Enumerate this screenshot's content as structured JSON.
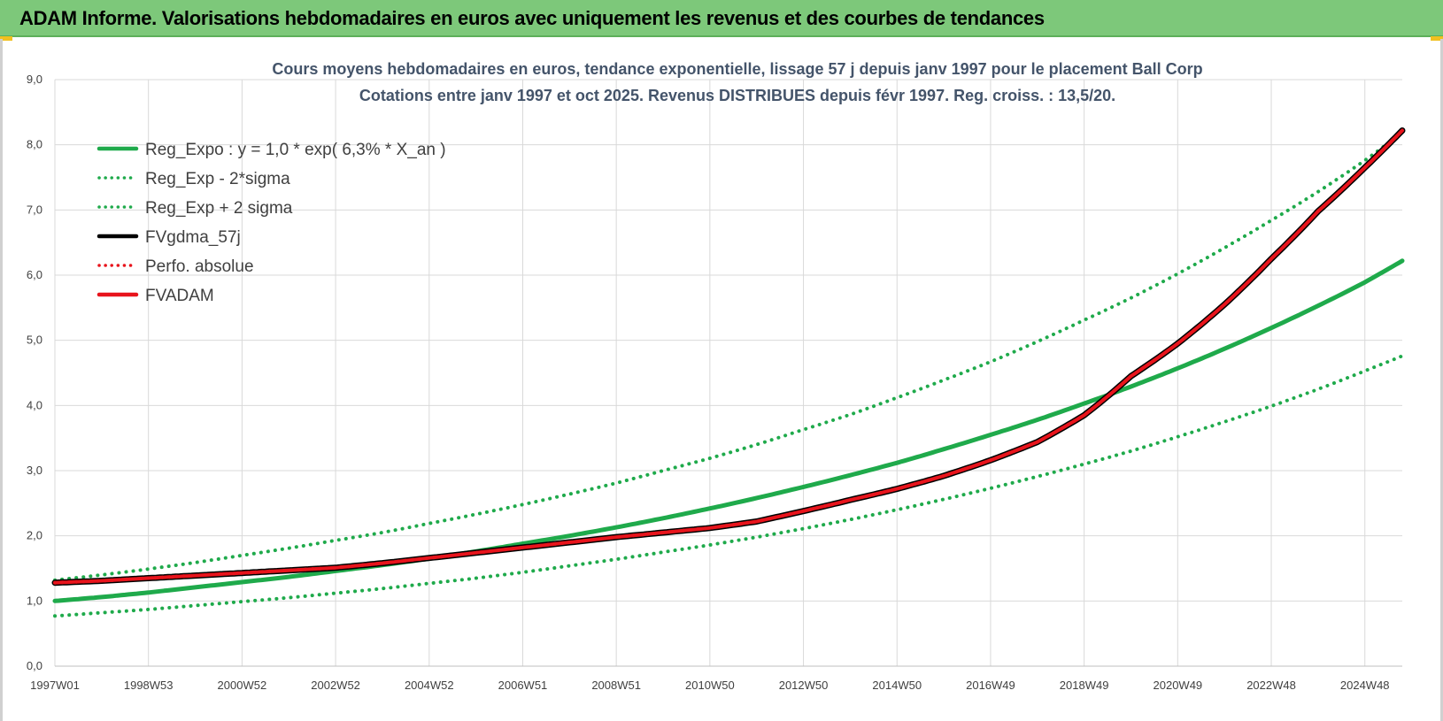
{
  "banner": {
    "title": "ADAM Informe. Valorisations hebdomadaires en euros avec uniquement les revenus et des courbes de tendances"
  },
  "colors": {
    "banner_bg": "#7dc87a",
    "regression": "#1faa4b",
    "fvadam": "#e8141c",
    "fvgdma": "#000000",
    "grid": "#d9d9d9"
  },
  "chart_data": {
    "type": "line",
    "title": [
      "Cours moyens hebdomadaires en euros, tendance exponentielle, lissage 57 j depuis janv 1997 pour le placement Ball Corp",
      "Cotations entre janv 1997 et oct 2025. Revenus DISTRIBUES depuis févr 1997. Reg. croiss. : 13,5/20."
    ],
    "xlabel": "",
    "ylabel": "",
    "x_range": [
      "1997W01",
      "2025W43"
    ],
    "ylim": [
      0,
      9
    ],
    "y_ticks": [
      "0,0",
      "1,0",
      "2,0",
      "3,0",
      "4,0",
      "5,0",
      "6,0",
      "7,0",
      "8,0",
      "9,0"
    ],
    "x_ticks": [
      "1997W01",
      "1998W53",
      "2000W52",
      "2002W52",
      "2004W52",
      "2006W51",
      "2008W51",
      "2010W50",
      "2012W50",
      "2014W50",
      "2016W49",
      "2018W49",
      "2020W49",
      "2022W48",
      "2024W48"
    ],
    "grid": true,
    "legend_position": "top-left",
    "legend": [
      {
        "label": "Reg_Expo : y = 1,0 * exp( 6,3% *  X_an )",
        "color": "#1faa4b",
        "style": "solid"
      },
      {
        "label": "Reg_Exp - 2*sigma",
        "color": "#1faa4b",
        "style": "dotted"
      },
      {
        "label": "Reg_Exp + 2 sigma",
        "color": "#1faa4b",
        "style": "dotted"
      },
      {
        "label": "FVgdma_57j",
        "color": "#000000",
        "style": "solid"
      },
      {
        "label": "Perfo. absolue",
        "color": "#e8141c",
        "style": "dotted"
      },
      {
        "label": "FVADAM",
        "color": "#e8141c",
        "style": "solid"
      }
    ],
    "x_years": [
      1997,
      1998,
      1999,
      2000,
      2001,
      2002,
      2003,
      2004,
      2005,
      2006,
      2007,
      2008,
      2009,
      2010,
      2011,
      2012,
      2013,
      2014,
      2015,
      2016,
      2017,
      2018,
      2019,
      2020,
      2021,
      2022,
      2023,
      2024,
      2025,
      2025.8
    ],
    "series": [
      {
        "name": "Reg_Expo : y = 1,0 * exp( 6,3% *  X_an )",
        "style": "solid",
        "color": "#1faa4b",
        "values": [
          1.0,
          1.06,
          1.13,
          1.21,
          1.29,
          1.37,
          1.46,
          1.55,
          1.65,
          1.76,
          1.88,
          2.0,
          2.13,
          2.27,
          2.42,
          2.58,
          2.75,
          2.93,
          3.12,
          3.33,
          3.55,
          3.78,
          4.03,
          4.29,
          4.57,
          4.87,
          5.19,
          5.53,
          5.89,
          6.22
        ]
      },
      {
        "name": "Reg_Exp - 2*sigma",
        "style": "dotted",
        "color": "#1faa4b",
        "values": [
          0.77,
          0.82,
          0.87,
          0.93,
          0.99,
          1.05,
          1.12,
          1.19,
          1.27,
          1.35,
          1.44,
          1.54,
          1.64,
          1.75,
          1.86,
          1.98,
          2.11,
          2.25,
          2.4,
          2.56,
          2.73,
          2.91,
          3.1,
          3.3,
          3.52,
          3.75,
          3.99,
          4.25,
          4.53,
          4.76
        ]
      },
      {
        "name": "Reg_Exp + 2 sigma",
        "style": "dotted",
        "color": "#1faa4b",
        "values": [
          1.32,
          1.4,
          1.49,
          1.59,
          1.7,
          1.81,
          1.93,
          2.05,
          2.19,
          2.33,
          2.48,
          2.64,
          2.81,
          3.0,
          3.19,
          3.4,
          3.63,
          3.86,
          4.12,
          4.39,
          4.67,
          4.98,
          5.31,
          5.65,
          6.02,
          6.42,
          6.84,
          7.28,
          7.76,
          8.19
        ]
      },
      {
        "name": "FVgdma_57j",
        "style": "solid",
        "color": "#000000",
        "values": [
          1.28,
          1.31,
          1.35,
          1.39,
          1.43,
          1.47,
          1.51,
          1.58,
          1.66,
          1.74,
          1.82,
          1.9,
          1.98,
          2.05,
          2.12,
          2.22,
          2.38,
          2.55,
          2.72,
          2.92,
          3.16,
          3.44,
          3.85,
          4.45,
          4.95,
          5.55,
          6.25,
          6.98,
          7.65,
          8.22
        ]
      },
      {
        "name": "Perfo. absolue",
        "style": "dotted",
        "color": "#e8141c",
        "values": [
          1.28,
          1.31,
          1.35,
          1.39,
          1.43,
          1.47,
          1.51,
          1.58,
          1.66,
          1.74,
          1.82,
          1.9,
          1.98,
          2.05,
          2.12,
          2.22,
          2.38,
          2.55,
          2.72,
          2.92,
          3.16,
          3.44,
          3.85,
          4.45,
          4.95,
          5.55,
          6.25,
          6.98,
          7.65,
          8.22
        ]
      },
      {
        "name": "FVADAM",
        "style": "solid",
        "color": "#e8141c",
        "values": [
          1.28,
          1.31,
          1.35,
          1.39,
          1.43,
          1.47,
          1.51,
          1.58,
          1.66,
          1.74,
          1.82,
          1.9,
          1.98,
          2.05,
          2.12,
          2.22,
          2.38,
          2.55,
          2.72,
          2.92,
          3.16,
          3.44,
          3.85,
          4.45,
          4.95,
          5.55,
          6.25,
          6.98,
          7.65,
          8.22
        ]
      }
    ]
  }
}
